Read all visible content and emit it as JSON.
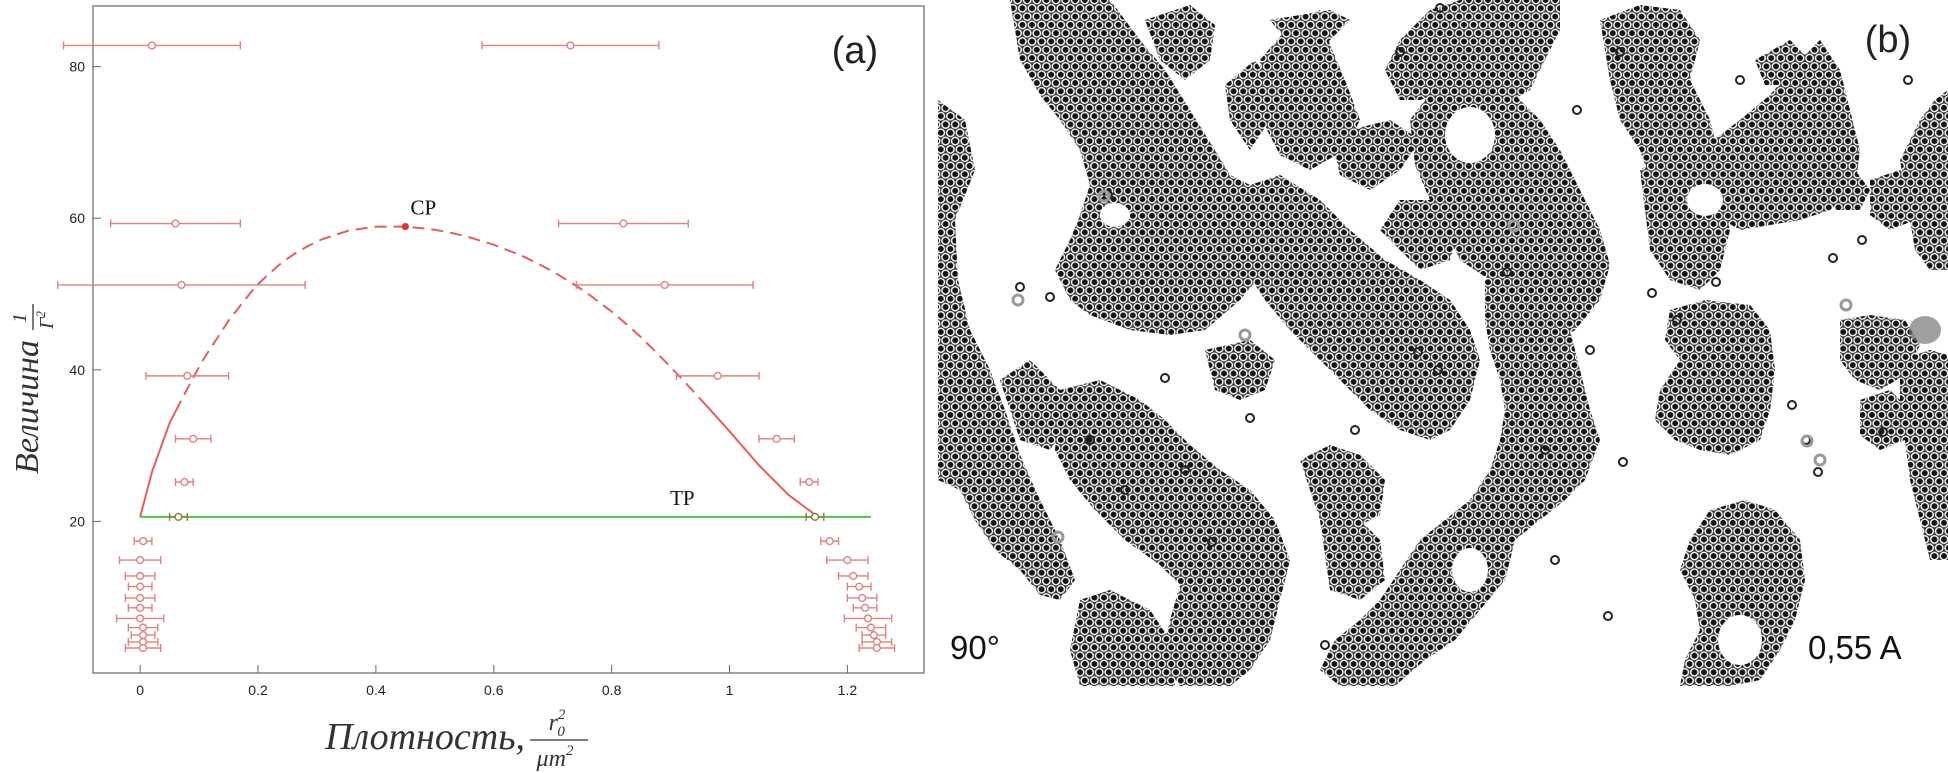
{
  "chart_data": [
    {
      "type": "scatter",
      "panel_label": "(a)",
      "xlabel": "Плотность,",
      "xlabel_fraction": {
        "numerator": "r",
        "numerator_sub": "0",
        "numerator_sup": "2",
        "denominator": "μm",
        "denominator_sup": "2"
      },
      "ylabel": "Величина",
      "ylabel_fraction": {
        "numerator": "1",
        "denominator": "Γ",
        "denominator_sup": "2"
      },
      "xlim": [
        -0.08,
        1.33
      ],
      "ylim": [
        0,
        88
      ],
      "x_ticks": [
        "0",
        "0.2",
        "0.4",
        "0.6",
        "0.8",
        "1",
        "1.2"
      ],
      "x_tick_values": [
        0,
        0.2,
        0.4,
        0.6,
        0.8,
        1,
        1.2
      ],
      "y_ticks": [
        "20",
        "40",
        "60",
        "80"
      ],
      "y_tick_values": [
        20,
        40,
        60,
        80
      ],
      "grid": false,
      "series": [
        {
          "color": "#e08080",
          "points": [
            {
              "x": 0.02,
              "y": 82.8,
              "xerr": 0.15
            },
            {
              "x": 0.73,
              "y": 82.8,
              "xerr": 0.15
            },
            {
              "x": 0.06,
              "y": 59.3,
              "xerr": 0.11
            },
            {
              "x": 0.82,
              "y": 59.3,
              "xerr": 0.11
            },
            {
              "x": 0.07,
              "y": 51.2,
              "xerr": 0.21
            },
            {
              "x": 0.89,
              "y": 51.2,
              "xerr": 0.15
            },
            {
              "x": 0.08,
              "y": 39.2,
              "xerr": 0.07
            },
            {
              "x": 0.98,
              "y": 39.2,
              "xerr": 0.07
            },
            {
              "x": 0.09,
              "y": 30.9,
              "xerr": 0.03
            },
            {
              "x": 1.08,
              "y": 30.9,
              "xerr": 0.03
            },
            {
              "x": 0.075,
              "y": 25.2,
              "xerr": 0.015
            },
            {
              "x": 1.135,
              "y": 25.2,
              "xerr": 0.015
            },
            {
              "x": 0.005,
              "y": 17.4,
              "xerr": 0.015
            },
            {
              "x": 1.17,
              "y": 17.4,
              "xerr": 0.015
            },
            {
              "x": 0.0,
              "y": 14.9,
              "xerr": 0.035
            },
            {
              "x": 1.2,
              "y": 14.9,
              "xerr": 0.035
            },
            {
              "x": 0.0,
              "y": 12.8,
              "xerr": 0.025
            },
            {
              "x": 1.21,
              "y": 12.8,
              "xerr": 0.025
            },
            {
              "x": 0.0,
              "y": 11.4,
              "xerr": 0.02
            },
            {
              "x": 1.22,
              "y": 11.4,
              "xerr": 0.02
            },
            {
              "x": 0.0,
              "y": 9.9,
              "xerr": 0.025
            },
            {
              "x": 1.225,
              "y": 9.9,
              "xerr": 0.025
            },
            {
              "x": 0.0,
              "y": 8.6,
              "xerr": 0.02
            },
            {
              "x": 1.23,
              "y": 8.6,
              "xerr": 0.02
            },
            {
              "x": 0.0,
              "y": 7.2,
              "xerr": 0.04
            },
            {
              "x": 1.235,
              "y": 7.2,
              "xerr": 0.04
            },
            {
              "x": 0.005,
              "y": 6.0,
              "xerr": 0.025
            },
            {
              "x": 1.24,
              "y": 6.0,
              "xerr": 0.025
            },
            {
              "x": 0.005,
              "y": 5.0,
              "xerr": 0.02
            },
            {
              "x": 1.245,
              "y": 5.0,
              "xerr": 0.02
            },
            {
              "x": 0.005,
              "y": 4.1,
              "xerr": 0.025
            },
            {
              "x": 1.25,
              "y": 4.1,
              "xerr": 0.025
            },
            {
              "x": 0.005,
              "y": 3.3,
              "xerr": 0.03
            },
            {
              "x": 1.25,
              "y": 3.3,
              "xerr": 0.03
            }
          ]
        },
        {
          "color": "#808040",
          "points": [
            {
              "x": 0.065,
              "y": 20.6,
              "xerr": 0.015
            },
            {
              "x": 1.145,
              "y": 20.6,
              "xerr": 0.015
            }
          ]
        }
      ],
      "coexistence_curve": {
        "color": "#e06060",
        "x": [
          0.0,
          0.02,
          0.05,
          0.1,
          0.15,
          0.2,
          0.25,
          0.3,
          0.35,
          0.4,
          0.45,
          0.5,
          0.55,
          0.6,
          0.65,
          0.7,
          0.75,
          0.8,
          0.85,
          0.9,
          0.95,
          1.0,
          1.05,
          1.1,
          1.15
        ],
        "y": [
          20.6,
          26.5,
          33.0,
          40.5,
          46.5,
          51.4,
          54.8,
          57.0,
          58.3,
          58.9,
          58.9,
          58.5,
          57.7,
          56.5,
          55.0,
          53.0,
          50.6,
          47.7,
          44.3,
          40.4,
          36.2,
          31.9,
          27.4,
          23.5,
          20.6
        ],
        "solid_x_ranges": [
          [
            0.0,
            0.06
          ],
          [
            0.96,
            1.15
          ]
        ]
      },
      "critical_point": {
        "x": 0.45,
        "y": 58.9,
        "label": "CP",
        "color": "#e03030"
      },
      "triple_line": {
        "x": [
          0.0,
          1.24
        ],
        "y": 20.6,
        "label": "TP",
        "color": "#55bb55"
      }
    }
  ],
  "photo": {
    "panel_label": "(b)",
    "angle_label": "90°",
    "current_label": "0,55 A"
  }
}
